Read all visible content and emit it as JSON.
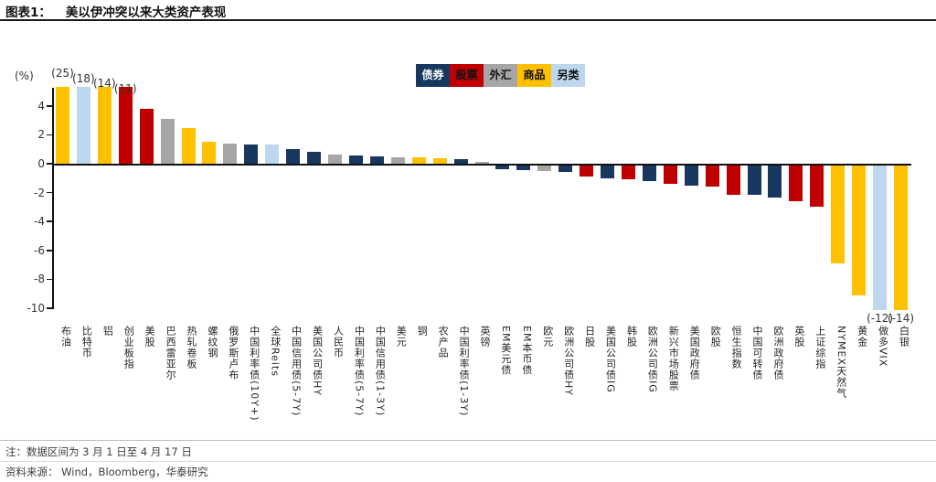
{
  "header": {
    "label": "图表1：",
    "title": "美以伊冲突以来大类资产表现"
  },
  "axis_unit": "(%)",
  "legend": [
    {
      "label": "债券",
      "color": "#17375e",
      "text_color": "#ffffff"
    },
    {
      "label": "股票",
      "color": "#c00000",
      "text_color": "#111111"
    },
    {
      "label": "外汇",
      "color": "#a6a6a6",
      "text_color": "#111111"
    },
    {
      "label": "商品",
      "color": "#ffc000",
      "text_color": "#111111"
    },
    {
      "label": "另类",
      "color": "#bdd7ee",
      "text_color": "#111111"
    }
  ],
  "chart_data": {
    "type": "bar",
    "title": "美以伊冲突以来大类资产表现",
    "ylabel": "(%)",
    "ylim": [
      -10,
      5.3
    ],
    "yticks": [
      4,
      2,
      0,
      -2,
      -4,
      -6,
      -8,
      -10
    ],
    "grid": false,
    "legend_position": "top-right",
    "series_colors": {
      "债券": "#17375e",
      "股票": "#c00000",
      "外汇": "#a6a6a6",
      "商品": "#ffc000",
      "另类": "#bdd7ee"
    },
    "bars": [
      {
        "label": "布油",
        "category": "商品",
        "value": 25,
        "annotation": "(25)"
      },
      {
        "label": "比特币",
        "category": "另类",
        "value": 18,
        "annotation": "(18)"
      },
      {
        "label": "铝",
        "category": "商品",
        "value": 14,
        "annotation": "(14)"
      },
      {
        "label": "创业板指",
        "category": "股票",
        "value": 11,
        "annotation": "(11)"
      },
      {
        "label": "美股",
        "category": "股票",
        "value": 3.8
      },
      {
        "label": "巴西雷亚尔",
        "category": "外汇",
        "value": 3.1
      },
      {
        "label": "热轧卷板",
        "category": "商品",
        "value": 2.5
      },
      {
        "label": "螺纹钢",
        "category": "商品",
        "value": 1.55
      },
      {
        "label": "俄罗斯卢布",
        "category": "外汇",
        "value": 1.4
      },
      {
        "label": "中国利率债(10Y+)",
        "category": "债券",
        "value": 1.3
      },
      {
        "label": "全球Reits",
        "category": "另类",
        "value": 1.3
      },
      {
        "label": "中国信用债(5-7Y)",
        "category": "债券",
        "value": 1.0
      },
      {
        "label": "美国公司债HY",
        "category": "债券",
        "value": 0.8
      },
      {
        "label": "人民币",
        "category": "外汇",
        "value": 0.65
      },
      {
        "label": "中国利率债(5-7Y)",
        "category": "债券",
        "value": 0.55
      },
      {
        "label": "中国信用债(1-3Y)",
        "category": "债券",
        "value": 0.5
      },
      {
        "label": "美元",
        "category": "外汇",
        "value": 0.45
      },
      {
        "label": "铜",
        "category": "商品",
        "value": 0.42
      },
      {
        "label": "农产品",
        "category": "商品",
        "value": 0.38
      },
      {
        "label": "中国利率债(1-3Y)",
        "category": "债券",
        "value": 0.3
      },
      {
        "label": "英镑",
        "category": "外汇",
        "value": 0.15
      },
      {
        "label": "EM美元债",
        "category": "债券",
        "value": -0.3
      },
      {
        "label": "EM本币债",
        "category": "债券",
        "value": -0.35
      },
      {
        "label": "欧元",
        "category": "外汇",
        "value": -0.4
      },
      {
        "label": "欧洲公司债HY",
        "category": "债券",
        "value": -0.5
      },
      {
        "label": "日股",
        "category": "股票",
        "value": -0.8
      },
      {
        "label": "美国公司债IG",
        "category": "债券",
        "value": -0.9
      },
      {
        "label": "韩股",
        "category": "股票",
        "value": -1.0
      },
      {
        "label": "欧洲公司债IG",
        "category": "债券",
        "value": -1.1
      },
      {
        "label": "新兴市场股票",
        "category": "股票",
        "value": -1.3
      },
      {
        "label": "美国政府债",
        "category": "债券",
        "value": -1.4
      },
      {
        "label": "欧股",
        "category": "股票",
        "value": -1.5
      },
      {
        "label": "恒生指数",
        "category": "股票",
        "value": -2.05
      },
      {
        "label": "中国可转债",
        "category": "债券",
        "value": -2.05
      },
      {
        "label": "欧洲政府债",
        "category": "债券",
        "value": -2.25
      },
      {
        "label": "英股",
        "category": "股票",
        "value": -2.5
      },
      {
        "label": "上证综指",
        "category": "股票",
        "value": -2.9
      },
      {
        "label": "NYMEX天然气",
        "category": "商品",
        "value": -6.8
      },
      {
        "label": "黄金",
        "category": "商品",
        "value": -9.0
      },
      {
        "label": "做多VIX",
        "category": "另类",
        "value": -12,
        "annotation": "(-12)"
      },
      {
        "label": "白银",
        "category": "商品",
        "value": -14,
        "annotation": "(-14)"
      }
    ]
  },
  "footnotes": {
    "note": "注：数据区间为 3 月 1 日至 4 月 17 日",
    "source": "资料来源：  Wind，Bloomberg，华泰研究"
  }
}
